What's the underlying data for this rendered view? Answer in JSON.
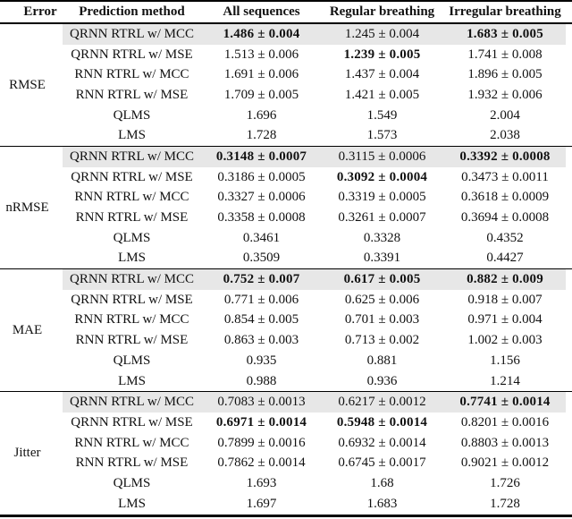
{
  "colors": {
    "highlight_row_bg": "#e7e7e7",
    "rule": "#000000",
    "text": "#111111"
  },
  "table": {
    "headers": {
      "error": "Error",
      "method": "Prediction method",
      "all_sequences": "All sequences",
      "regular_breathing": "Regular breathing",
      "irregular_breathing": "Irregular breathing"
    },
    "groups": [
      {
        "error": "RMSE",
        "rows": [
          {
            "method": "QRNN RTRL w/ MCC",
            "highlight": true,
            "values": [
              {
                "t": "1.486 ± 0.004",
                "b": true
              },
              {
                "t": "1.245 ± 0.004",
                "b": false
              },
              {
                "t": "1.683 ± 0.005",
                "b": true
              }
            ]
          },
          {
            "method": "QRNN RTRL w/ MSE",
            "highlight": false,
            "values": [
              {
                "t": "1.513 ± 0.006",
                "b": false
              },
              {
                "t": "1.239 ± 0.005",
                "b": true
              },
              {
                "t": "1.741 ± 0.008",
                "b": false
              }
            ]
          },
          {
            "method": "RNN RTRL w/ MCC",
            "highlight": false,
            "values": [
              {
                "t": "1.691 ± 0.006",
                "b": false
              },
              {
                "t": "1.437 ± 0.004",
                "b": false
              },
              {
                "t": "1.896 ± 0.005",
                "b": false
              }
            ]
          },
          {
            "method": "RNN RTRL w/ MSE",
            "highlight": false,
            "values": [
              {
                "t": "1.709 ± 0.005",
                "b": false
              },
              {
                "t": "1.421 ± 0.005",
                "b": false
              },
              {
                "t": "1.932 ± 0.006",
                "b": false
              }
            ]
          },
          {
            "method": "QLMS",
            "highlight": false,
            "values": [
              {
                "t": "1.696",
                "b": false
              },
              {
                "t": "1.549",
                "b": false
              },
              {
                "t": "2.004",
                "b": false
              }
            ]
          },
          {
            "method": "LMS",
            "highlight": false,
            "values": [
              {
                "t": "1.728",
                "b": false
              },
              {
                "t": "1.573",
                "b": false
              },
              {
                "t": "2.038",
                "b": false
              }
            ]
          }
        ]
      },
      {
        "error": "nRMSE",
        "rows": [
          {
            "method": "QRNN RTRL w/ MCC",
            "highlight": true,
            "values": [
              {
                "t": "0.3148 ± 0.0007",
                "b": true
              },
              {
                "t": "0.3115 ± 0.0006",
                "b": false
              },
              {
                "t": "0.3392 ± 0.0008",
                "b": true
              }
            ]
          },
          {
            "method": "QRNN RTRL w/ MSE",
            "highlight": false,
            "values": [
              {
                "t": "0.3186 ± 0.0005",
                "b": false
              },
              {
                "t": "0.3092 ± 0.0004",
                "b": true
              },
              {
                "t": "0.3473 ± 0.0011",
                "b": false
              }
            ]
          },
          {
            "method": "RNN RTRL w/ MCC",
            "highlight": false,
            "values": [
              {
                "t": "0.3327 ± 0.0006",
                "b": false
              },
              {
                "t": "0.3319 ± 0.0005",
                "b": false
              },
              {
                "t": "0.3618 ± 0.0009",
                "b": false
              }
            ]
          },
          {
            "method": "RNN RTRL w/ MSE",
            "highlight": false,
            "values": [
              {
                "t": "0.3358 ± 0.0008",
                "b": false
              },
              {
                "t": "0.3261 ± 0.0007",
                "b": false
              },
              {
                "t": "0.3694 ± 0.0008",
                "b": false
              }
            ]
          },
          {
            "method": "QLMS",
            "highlight": false,
            "values": [
              {
                "t": "0.3461",
                "b": false
              },
              {
                "t": "0.3328",
                "b": false
              },
              {
                "t": "0.4352",
                "b": false
              }
            ]
          },
          {
            "method": "LMS",
            "highlight": false,
            "values": [
              {
                "t": "0.3509",
                "b": false
              },
              {
                "t": "0.3391",
                "b": false
              },
              {
                "t": "0.4427",
                "b": false
              }
            ]
          }
        ]
      },
      {
        "error": "MAE",
        "rows": [
          {
            "method": "QRNN RTRL w/ MCC",
            "highlight": true,
            "values": [
              {
                "t": "0.752 ± 0.007",
                "b": true
              },
              {
                "t": "0.617 ± 0.005",
                "b": true
              },
              {
                "t": "0.882 ± 0.009",
                "b": true
              }
            ]
          },
          {
            "method": "QRNN RTRL w/ MSE",
            "highlight": false,
            "values": [
              {
                "t": "0.771 ± 0.006",
                "b": false
              },
              {
                "t": "0.625 ± 0.006",
                "b": false
              },
              {
                "t": "0.918 ± 0.007",
                "b": false
              }
            ]
          },
          {
            "method": "RNN RTRL w/ MCC",
            "highlight": false,
            "values": [
              {
                "t": "0.854 ± 0.005",
                "b": false
              },
              {
                "t": "0.701 ± 0.003",
                "b": false
              },
              {
                "t": "0.971 ± 0.004",
                "b": false
              }
            ]
          },
          {
            "method": "RNN RTRL w/ MSE",
            "highlight": false,
            "values": [
              {
                "t": "0.863 ± 0.003",
                "b": false
              },
              {
                "t": "0.713 ± 0.002",
                "b": false
              },
              {
                "t": "1.002 ± 0.003",
                "b": false
              }
            ]
          },
          {
            "method": "QLMS",
            "highlight": false,
            "values": [
              {
                "t": "0.935",
                "b": false
              },
              {
                "t": "0.881",
                "b": false
              },
              {
                "t": "1.156",
                "b": false
              }
            ]
          },
          {
            "method": "LMS",
            "highlight": false,
            "values": [
              {
                "t": "0.988",
                "b": false
              },
              {
                "t": "0.936",
                "b": false
              },
              {
                "t": "1.214",
                "b": false
              }
            ]
          }
        ]
      },
      {
        "error": "Jitter",
        "rows": [
          {
            "method": "QRNN RTRL w/ MCC",
            "highlight": true,
            "values": [
              {
                "t": "0.7083 ± 0.0013",
                "b": false
              },
              {
                "t": "0.6217 ± 0.0012",
                "b": false
              },
              {
                "t": "0.7741 ± 0.0014",
                "b": true
              }
            ]
          },
          {
            "method": "QRNN RTRL w/ MSE",
            "highlight": false,
            "values": [
              {
                "t": "0.6971 ± 0.0014",
                "b": true
              },
              {
                "t": "0.5948 ± 0.0014",
                "b": true
              },
              {
                "t": "0.8201 ± 0.0016",
                "b": false
              }
            ]
          },
          {
            "method": "RNN RTRL w/ MCC",
            "highlight": false,
            "values": [
              {
                "t": "0.7899 ± 0.0016",
                "b": false
              },
              {
                "t": "0.6932 ± 0.0014",
                "b": false
              },
              {
                "t": "0.8803 ± 0.0013",
                "b": false
              }
            ]
          },
          {
            "method": "RNN RTRL w/ MSE",
            "highlight": false,
            "values": [
              {
                "t": "0.7862 ± 0.0014",
                "b": false
              },
              {
                "t": "0.6745 ± 0.0017",
                "b": false
              },
              {
                "t": "0.9021 ± 0.0012",
                "b": false
              }
            ]
          },
          {
            "method": "QLMS",
            "highlight": false,
            "values": [
              {
                "t": "1.693",
                "b": false
              },
              {
                "t": "1.68",
                "b": false
              },
              {
                "t": "1.726",
                "b": false
              }
            ]
          },
          {
            "method": "LMS",
            "highlight": false,
            "values": [
              {
                "t": "1.697",
                "b": false
              },
              {
                "t": "1.683",
                "b": false
              },
              {
                "t": "1.728",
                "b": false
              }
            ]
          }
        ]
      }
    ]
  }
}
